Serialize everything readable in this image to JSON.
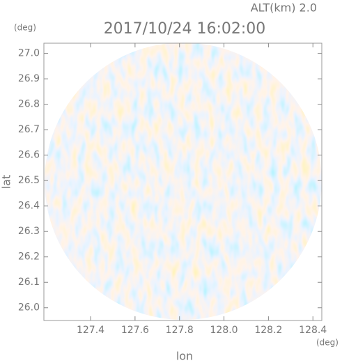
{
  "chart_data": {
    "type": "radar-ppi",
    "title": "2017/10/24 16:02:00",
    "subtitle": "ALT(km) 2.0",
    "x_label": "lon",
    "y_label": "lat",
    "x_unit": "(deg)",
    "y_unit": "(deg)",
    "xlim": [
      127.19,
      128.44
    ],
    "ylim": [
      25.95,
      27.04
    ],
    "xticks": [
      127.4,
      127.6,
      127.8,
      {
        "value": 128,
        "label": "128.0"
      },
      128.2,
      128.4
    ],
    "yticks": [
      {
        "value": 26,
        "label": "26.0"
      },
      26.1,
      26.2,
      26.3,
      26.4,
      26.5,
      26.6,
      26.7,
      26.8,
      26.9,
      {
        "value": 27,
        "label": "27.0"
      }
    ]
  }
}
